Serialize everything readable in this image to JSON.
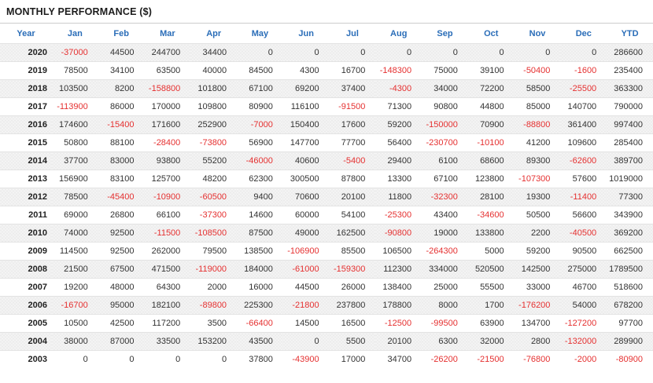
{
  "title": "MONTHLY PERFORMANCE ($)",
  "styles": {
    "header_text_color": "#2a6db8",
    "positive_color": "#333333",
    "negative_color": "#e53030",
    "alt_row_bg": "#f5f5f5",
    "title_color": "#1c1c1c"
  },
  "chart_data": {
    "type": "table",
    "title": "MONTHLY PERFORMANCE ($)",
    "columns": [
      "Year",
      "Jan",
      "Feb",
      "Mar",
      "Apr",
      "May",
      "Jun",
      "Jul",
      "Aug",
      "Sep",
      "Oct",
      "Nov",
      "Dec",
      "YTD"
    ],
    "rows": [
      {
        "year": "2020",
        "values": [
          -37000,
          44500,
          244700,
          34400,
          0,
          0,
          0,
          0,
          0,
          0,
          0,
          0,
          286600
        ]
      },
      {
        "year": "2019",
        "values": [
          78500,
          34100,
          63500,
          40000,
          84500,
          4300,
          16700,
          -148300,
          75000,
          39100,
          -50400,
          -1600,
          235400
        ]
      },
      {
        "year": "2018",
        "values": [
          103500,
          8200,
          -158800,
          101800,
          67100,
          69200,
          37400,
          -4300,
          34000,
          72200,
          58500,
          -25500,
          363300
        ]
      },
      {
        "year": "2017",
        "values": [
          -113900,
          86000,
          170000,
          109800,
          80900,
          116100,
          -91500,
          71300,
          90800,
          44800,
          85000,
          140700,
          790000
        ]
      },
      {
        "year": "2016",
        "values": [
          174600,
          -15400,
          171600,
          252900,
          -7000,
          150400,
          17600,
          59200,
          -150000,
          70900,
          -88800,
          361400,
          997400
        ]
      },
      {
        "year": "2015",
        "values": [
          50800,
          88100,
          -28400,
          -73800,
          56900,
          147700,
          77700,
          56400,
          -230700,
          -10100,
          41200,
          109600,
          285400
        ]
      },
      {
        "year": "2014",
        "values": [
          37700,
          83000,
          93800,
          55200,
          -46000,
          40600,
          -5400,
          29400,
          6100,
          68600,
          89300,
          -62600,
          389700
        ]
      },
      {
        "year": "2013",
        "values": [
          156900,
          83100,
          125700,
          48200,
          62300,
          300500,
          87800,
          13300,
          67100,
          123800,
          -107300,
          57600,
          1019000
        ]
      },
      {
        "year": "2012",
        "values": [
          78500,
          -45400,
          -10900,
          -60500,
          9400,
          70600,
          20100,
          11800,
          -32300,
          28100,
          19300,
          -11400,
          77300
        ]
      },
      {
        "year": "2011",
        "values": [
          69000,
          26800,
          66100,
          -37300,
          14600,
          60000,
          54100,
          -25300,
          43400,
          -34600,
          50500,
          56600,
          343900
        ]
      },
      {
        "year": "2010",
        "values": [
          74000,
          92500,
          -11500,
          -108500,
          87500,
          49000,
          162500,
          -90800,
          19000,
          133800,
          2200,
          -40500,
          369200
        ]
      },
      {
        "year": "2009",
        "values": [
          114500,
          92500,
          262000,
          79500,
          138500,
          -106900,
          85500,
          106500,
          -264300,
          5000,
          59200,
          90500,
          662500
        ]
      },
      {
        "year": "2008",
        "values": [
          21500,
          67500,
          471500,
          -119000,
          184000,
          -61000,
          -159300,
          112300,
          334000,
          520500,
          142500,
          275000,
          1789500
        ]
      },
      {
        "year": "2007",
        "values": [
          19200,
          48000,
          64300,
          2000,
          16000,
          44500,
          26000,
          138400,
          25000,
          55500,
          33000,
          46700,
          518600
        ]
      },
      {
        "year": "2006",
        "values": [
          -16700,
          95000,
          182100,
          -89800,
          225300,
          -21800,
          237800,
          178800,
          8000,
          1700,
          -176200,
          54000,
          678200
        ]
      },
      {
        "year": "2005",
        "values": [
          10500,
          42500,
          117200,
          3500,
          -66400,
          14500,
          16500,
          -12500,
          -99500,
          63900,
          134700,
          -127200,
          97700
        ]
      },
      {
        "year": "2004",
        "values": [
          38000,
          87000,
          33500,
          153200,
          43500,
          0,
          5500,
          20100,
          6300,
          32000,
          2800,
          -132000,
          289900
        ]
      },
      {
        "year": "2003",
        "values": [
          0,
          0,
          0,
          0,
          37800,
          -43900,
          17000,
          34700,
          -26200,
          -21500,
          -76800,
          -2000,
          -80900
        ]
      }
    ]
  }
}
